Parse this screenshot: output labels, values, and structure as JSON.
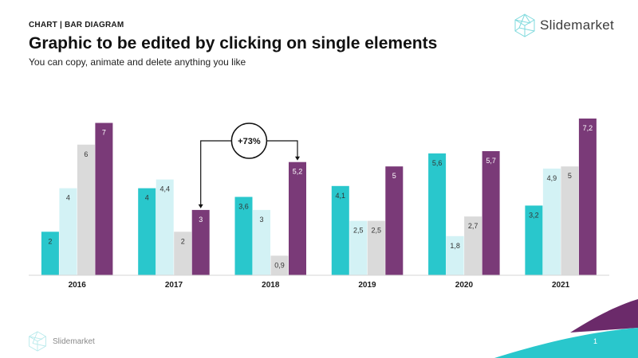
{
  "header": {
    "eyebrow": "CHART | BAR DIAGRAM",
    "title": "Graphic to be edited by clicking on single elements",
    "subtitle": "You can copy, animate and delete anything you like"
  },
  "brand": {
    "name": "Slidemarket",
    "icon": "hexagon-wireframe-logo-icon"
  },
  "footer": {
    "brand": "Slidemarket",
    "page_number": "1"
  },
  "annotation": {
    "label": "+73%",
    "from": {
      "category": "2017",
      "series": 3
    },
    "to": {
      "category": "2018",
      "series": 3
    }
  },
  "colors": {
    "series": [
      "#29c7cc",
      "#d3f2f5",
      "#dadada",
      "#7a3a78"
    ],
    "value_label_dark": "#333333",
    "value_label_light": "#ffffff",
    "swoosh_teal": "#29c7cc",
    "swoosh_purple": "#6b2a6a"
  },
  "chart_data": {
    "type": "bar",
    "categories": [
      "2016",
      "2017",
      "2018",
      "2019",
      "2020",
      "2021"
    ],
    "series": [
      {
        "values": [
          2,
          4,
          3.6,
          4.1,
          5.6,
          3.2
        ],
        "labels": [
          "2",
          "4",
          "3,6",
          "4,1",
          "5,6",
          "3,2"
        ]
      },
      {
        "values": [
          4,
          4.4,
          3,
          2.5,
          1.8,
          4.9
        ],
        "labels": [
          "4",
          "4,4",
          "3",
          "2,5",
          "1,8",
          "4,9"
        ]
      },
      {
        "values": [
          6,
          2,
          0.9,
          2.5,
          2.7,
          5
        ],
        "labels": [
          "6",
          "2",
          "0,9",
          "2,5",
          "2,7",
          "5"
        ]
      },
      {
        "values": [
          7,
          3,
          5.2,
          5,
          5.7,
          7.2
        ],
        "labels": [
          "7",
          "3",
          "5,2",
          "5",
          "5,7",
          "7,2"
        ]
      }
    ],
    "ylim": [
      0,
      7.2
    ],
    "grid": false,
    "legend": "none"
  }
}
